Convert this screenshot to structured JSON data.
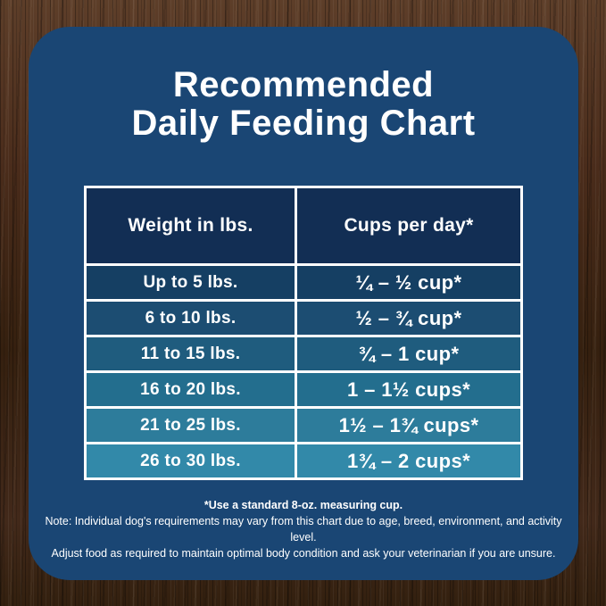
{
  "title": {
    "line1": "Recommended",
    "line2": "Daily Feeding Chart"
  },
  "chart_data": {
    "type": "table",
    "title": "Recommended Daily Feeding Chart",
    "columns": [
      "Weight in lbs.",
      "Cups per day*"
    ],
    "rows": [
      [
        "Up to 5 lbs.",
        "¼ – ½ cup*"
      ],
      [
        "6 to 10 lbs.",
        "½ – ¾ cup*"
      ],
      [
        "11 to 15 lbs.",
        "¾ – 1 cup*"
      ],
      [
        "16 to 20 lbs.",
        "1 – 1½ cups*"
      ],
      [
        "21 to 25 lbs.",
        "1½ – 1¾ cups*"
      ],
      [
        "26 to 30 lbs.",
        "1¾ – 2 cups*"
      ]
    ],
    "footnotes": [
      "*Use a standard 8-oz. measuring cup.",
      "Note: Individual dog's requirements may vary from this chart due to age, breed, environment, and activity level.",
      "Adjust food as required to maintain optimal body condition and ask your veterinarian if you are unsure."
    ]
  },
  "footnote": {
    "line1": "*Use a standard 8-oz. measuring cup.",
    "line2": "Note: Individual dog's requirements may vary from this chart due to age, breed, environment, and activity level.",
    "line3": "Adjust food as required to maintain optimal body condition and ask your veterinarian if you are unsure."
  },
  "colors": {
    "panel_bg": "#1a4674",
    "header_bg": "#122e54",
    "border_color": "#ffffff",
    "text_color": "#ffffff",
    "row_colors": [
      "#153f63",
      "#1c4d72",
      "#1f5c7e",
      "#236e8e",
      "#2d7c9b",
      "#3289a9"
    ]
  }
}
